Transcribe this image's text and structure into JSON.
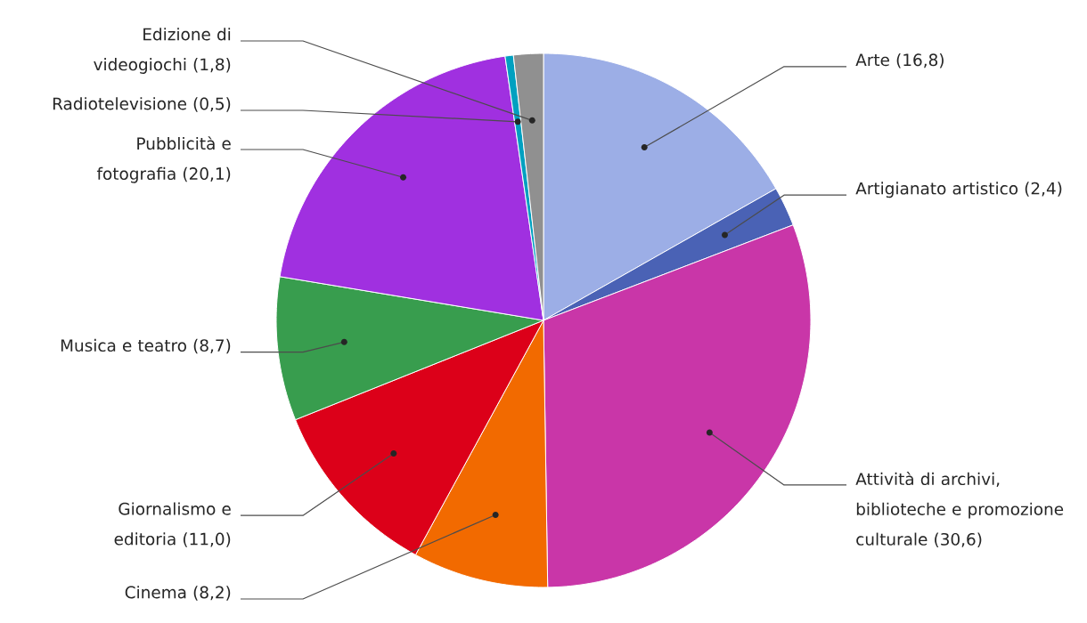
{
  "chart_data": {
    "type": "pie",
    "categories": [
      "Arte",
      "Artigianato artistico",
      "Attività di archivi, biblioteche e promozione culturale",
      "Cinema",
      "Giornalismo e editoria",
      "Musica e teatro",
      "Pubblicità e fotografia",
      "Radiotelevisione",
      "Edizione di videogiochi"
    ],
    "values": [
      16.8,
      2.4,
      30.6,
      8.2,
      11.0,
      8.7,
      20.1,
      0.5,
      1.8
    ],
    "value_labels": [
      "(16,8)",
      "(2,4)",
      "(30,6)",
      "(8,2)",
      "(11,0)",
      "(8,7)",
      "(20,1)",
      "(0,5)",
      "(1,8)"
    ],
    "colors": [
      "#9caee6",
      "#4a62b5",
      "#c936a8",
      "#f26a00",
      "#dc0019",
      "#389d4e",
      "#a030e0",
      "#00a0c0",
      "#909090"
    ]
  }
}
